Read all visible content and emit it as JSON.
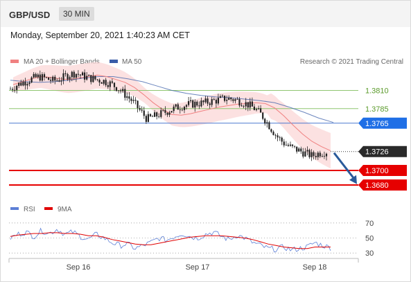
{
  "header": {
    "pair": "GBP/USD",
    "timeframe": "30 MIN"
  },
  "datetime": "Monday, September 20, 2021 1:40:23 AM CET",
  "legend": {
    "ma20": "MA 20 + Bollinger Bands",
    "ma50": "MA 50"
  },
  "credit": "Research © 2021 Trading Central",
  "rsi_legend": {
    "rsi": "RSI",
    "ma": "9MA"
  },
  "colors": {
    "ma20": "#f08080",
    "ma50": "#3a5da8",
    "bands": "#fbdada",
    "candle": "#222222",
    "green_level": "#8fc670",
    "green_text": "#5a9a2a",
    "blue_level": "#4a78d0",
    "red_level": "#e60000",
    "arrow": "#2a5a9a",
    "rsi": "#5c7fd6",
    "rsi_ma": "#e00000",
    "dotted": "#999999"
  },
  "chart_data": [
    {
      "type": "candlestick",
      "title": "GBP/USD",
      "timeframe": "30 MIN",
      "x_tick_labels": [
        "Sep 16",
        "Sep 17",
        "Sep 18"
      ],
      "ylim": [
        1.366,
        1.384
      ],
      "indicators": [
        "MA 20 + Bollinger Bands",
        "MA 50"
      ],
      "close_path": [
        1.3812,
        1.3818,
        1.3822,
        1.3826,
        1.3829,
        1.3826,
        1.3823,
        1.3826,
        1.3831,
        1.3834,
        1.383,
        1.3827,
        1.3825,
        1.3823,
        1.3819,
        1.3813,
        1.3804,
        1.3795,
        1.3783,
        1.3771,
        1.3774,
        1.3778,
        1.3782,
        1.3786,
        1.3789,
        1.3791,
        1.3792,
        1.3793,
        1.3795,
        1.3797,
        1.3799,
        1.3798,
        1.3795,
        1.3791,
        1.3785,
        1.3776,
        1.3762,
        1.3748,
        1.3738,
        1.3732,
        1.3728,
        1.3724,
        1.372,
        1.3724,
        1.3726
      ],
      "ma20_path": [
        1.3818,
        1.3822,
        1.3826,
        1.3829,
        1.3828,
        1.3826,
        1.3825,
        1.3827,
        1.3829,
        1.3831,
        1.3829,
        1.3825,
        1.3821,
        1.3814,
        1.3804,
        1.3793,
        1.3784,
        1.3777,
        1.3776,
        1.3778,
        1.3781,
        1.3784,
        1.3787,
        1.3789,
        1.3791,
        1.3792,
        1.3793,
        1.3792,
        1.3786,
        1.3775,
        1.3762,
        1.375,
        1.374,
        1.3733,
        1.3727
      ],
      "ma50_path": [
        1.3824,
        1.3822,
        1.3821,
        1.3822,
        1.3824,
        1.3827,
        1.3829,
        1.3829,
        1.3826,
        1.3822,
        1.3816,
        1.381,
        1.3806,
        1.3803,
        1.3801,
        1.38,
        1.3798,
        1.3796,
        1.3793,
        1.3787,
        1.378,
        1.3772,
        1.3766
      ],
      "levels": [
        {
          "value": 1.381,
          "label": "1.3810",
          "kind": "resistance"
        },
        {
          "value": 1.3785,
          "label": "1.3785",
          "kind": "resistance"
        },
        {
          "value": 1.3765,
          "label": "1.3765",
          "kind": "pivot"
        },
        {
          "value": 1.3726,
          "label": "1.3726",
          "kind": "last_price"
        },
        {
          "value": 1.37,
          "label": "1.3700",
          "kind": "target"
        },
        {
          "value": 1.368,
          "label": "1.3680",
          "kind": "target"
        }
      ],
      "forecast_arrow": {
        "from": 1.3726,
        "to": 1.3685,
        "direction": "down"
      }
    },
    {
      "type": "line",
      "series": [
        {
          "name": "RSI"
        },
        {
          "name": "9MA"
        }
      ],
      "ylim": [
        20,
        80
      ],
      "y_ticks": [
        {
          "value": 70,
          "label": "70"
        },
        {
          "value": 50,
          "label": "50"
        },
        {
          "value": 30,
          "label": "30"
        }
      ],
      "rsi_values": [
        50,
        55,
        58,
        52,
        60,
        56,
        62,
        55,
        58,
        52,
        48,
        55,
        50,
        44,
        40,
        42,
        36,
        40,
        44,
        50,
        47,
        52,
        56,
        52,
        50,
        55,
        58,
        52,
        48,
        54,
        50,
        44,
        40,
        36,
        35,
        38,
        34,
        36,
        38,
        44,
        40,
        37
      ],
      "ma9_values": [
        52,
        54,
        55,
        56,
        56,
        57,
        57,
        56,
        56,
        55,
        53,
        53,
        51,
        48,
        46,
        44,
        42,
        41,
        41,
        43,
        45,
        47,
        49,
        51,
        52,
        53,
        53,
        53,
        52,
        51,
        50,
        48,
        45,
        42,
        40,
        38,
        37,
        36,
        36,
        38,
        38,
        38
      ]
    }
  ]
}
